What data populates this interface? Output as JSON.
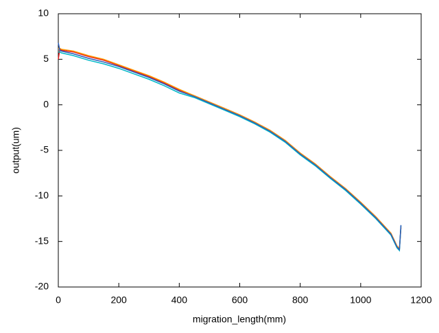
{
  "chart_data": {
    "type": "line",
    "x_label": "migration_length(mm)",
    "y_label": "output(um)",
    "x": [
      0,
      5,
      10,
      50,
      100,
      150,
      200,
      250,
      300,
      350,
      400,
      450,
      500,
      550,
      600,
      650,
      700,
      750,
      800,
      850,
      900,
      950,
      1000,
      1050,
      1100,
      1120,
      1128,
      1133
    ],
    "series": [
      {
        "color": "#e41a1c",
        "values": [
          5.0,
          6.1,
          6.0,
          5.8,
          5.3,
          4.9,
          4.3,
          3.7,
          3.1,
          2.4,
          1.6,
          1.0,
          0.3,
          -0.4,
          -1.1,
          -1.9,
          -2.8,
          -3.9,
          -5.3,
          -6.5,
          -7.9,
          -9.2,
          -10.7,
          -12.3,
          -14.1,
          -15.5,
          -15.8,
          -13.5
        ]
      },
      {
        "color": "#ff9900",
        "values": [
          6.2,
          6.2,
          6.1,
          5.9,
          5.4,
          5.0,
          4.4,
          3.8,
          3.2,
          2.5,
          1.7,
          1.0,
          0.3,
          -0.4,
          -1.1,
          -1.9,
          -2.8,
          -3.9,
          -5.3,
          -6.5,
          -7.9,
          -9.2,
          -10.7,
          -12.3,
          -14.1,
          -15.5,
          -15.8,
          -13.4
        ]
      },
      {
        "color": "#00b8c8",
        "values": [
          5.8,
          5.8,
          5.7,
          5.4,
          4.9,
          4.5,
          4.0,
          3.4,
          2.8,
          2.1,
          1.3,
          0.8,
          0.1,
          -0.6,
          -1.3,
          -2.1,
          -3.0,
          -4.1,
          -5.5,
          -6.7,
          -8.1,
          -9.4,
          -10.9,
          -12.5,
          -14.3,
          -15.7,
          -16.0,
          -13.3
        ]
      },
      {
        "color": "#2a5cb8",
        "values": [
          6.8,
          6.0,
          5.9,
          5.6,
          5.1,
          4.7,
          4.2,
          3.6,
          3.0,
          2.3,
          1.5,
          0.9,
          0.2,
          -0.5,
          -1.2,
          -2.0,
          -2.9,
          -4.0,
          -5.4,
          -6.6,
          -8.0,
          -9.3,
          -10.8,
          -12.4,
          -14.2,
          -15.6,
          -15.9,
          -13.2
        ]
      }
    ],
    "xlim": [
      0,
      1200
    ],
    "xticks": [
      0,
      200,
      400,
      600,
      800,
      1000,
      1200
    ],
    "ylim": [
      -20,
      10
    ],
    "yticks": [
      -20,
      -15,
      -10,
      -5,
      0,
      5,
      10
    ]
  }
}
